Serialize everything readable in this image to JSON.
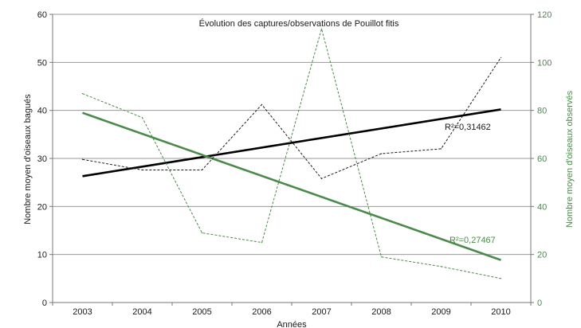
{
  "chart_data": {
    "type": "line",
    "title": "Évolution des captures/observations de Pouillot fitis",
    "xlabel": "Années",
    "ylabel_left": "Nombre moyen d'oiseaux bagués",
    "ylabel_right": "Nombre moyen d'oiseaux observés",
    "categories": [
      "2003",
      "2004",
      "2005",
      "2006",
      "2007",
      "2008",
      "2009",
      "2010"
    ],
    "ylim_left": [
      0,
      60
    ],
    "ylim_right": [
      0,
      120
    ],
    "yticks_left": [
      "0",
      "10",
      "20",
      "30",
      "40",
      "50",
      "60"
    ],
    "yticks_right": [
      "0",
      "20",
      "40",
      "60",
      "80",
      "100",
      "120"
    ],
    "grid": true,
    "series": [
      {
        "axis": "left",
        "style": "dashed",
        "color": "#1a1a1a",
        "values": [
          29.8,
          27.6,
          27.6,
          41.2,
          25.8,
          31.0,
          32.0,
          51.0
        ]
      },
      {
        "axis": "right",
        "style": "dashed",
        "color": "#4a8a4a",
        "values": [
          87,
          77,
          29,
          25,
          114,
          19,
          15,
          10
        ]
      }
    ],
    "trendlines": [
      {
        "axis": "left",
        "color": "#000000",
        "start": 26.3,
        "end": 40.2,
        "label": "R²=0,31462"
      },
      {
        "axis": "right",
        "color": "#4a8a4a",
        "start": 79,
        "end": 17.7,
        "label": "R²=0,27467"
      }
    ],
    "colors": {
      "accent_green": "#4a8a4a",
      "gridline": "#999999"
    }
  }
}
